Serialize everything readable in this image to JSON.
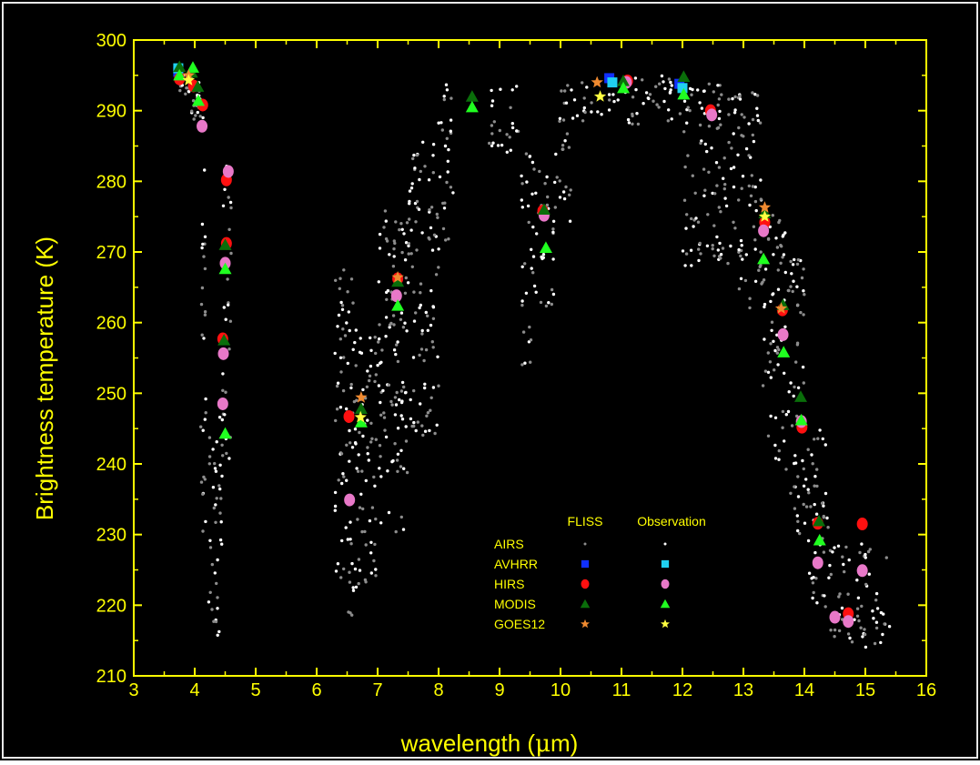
{
  "colors": {
    "background": "#000000",
    "border": "#e8e8e8",
    "axis": "#ffff00",
    "airs_fliss": "#8c8c8c",
    "airs_obs": "#ffffff",
    "avhrr_fliss": "#1030ff",
    "avhrr_obs": "#20d0f0",
    "hirs_fliss": "#ff1010",
    "hirs_obs": "#e878c8",
    "modis_fliss": "#0a6e0a",
    "modis_obs": "#20ff20",
    "goes_fliss": "#f08a30",
    "goes_obs": "#ffff40"
  },
  "chart_data": {
    "type": "scatter",
    "xlabel_main": "wavelength (",
    "xlabel_mu": "μ",
    "xlabel_end": "m)",
    "ylabel": "Brightness temperature (K)",
    "xlim": [
      3,
      16
    ],
    "ylim": [
      210,
      300
    ],
    "x_ticks": [
      "3",
      "4",
      "5",
      "6",
      "7",
      "8",
      "9",
      "10",
      "11",
      "12",
      "13",
      "14",
      "15",
      "16"
    ],
    "y_ticks": [
      "210",
      "220",
      "230",
      "240",
      "250",
      "260",
      "270",
      "280",
      "290",
      "300"
    ],
    "legend": {
      "placement": "bottom-center",
      "header_fliss": "FLISS",
      "header_obs": "Observation",
      "rows": [
        {
          "label": "AIRS",
          "fliss_marker": "dot",
          "fliss_color": "#8c8c8c",
          "obs_marker": "dot",
          "obs_color": "#ffffff"
        },
        {
          "label": "AVHRR",
          "fliss_marker": "square",
          "fliss_color": "#1030ff",
          "obs_marker": "square",
          "obs_color": "#20d0f0"
        },
        {
          "label": "HIRS",
          "fliss_marker": "circle",
          "fliss_color": "#ff1010",
          "obs_marker": "circle",
          "obs_color": "#e878c8"
        },
        {
          "label": "MODIS",
          "fliss_marker": "triangle",
          "fliss_color": "#0a6e0a",
          "obs_marker": "triangle",
          "obs_color": "#20ff20"
        },
        {
          "label": "GOES12",
          "fliss_marker": "star",
          "fliss_color": "#f08a30",
          "obs_marker": "star",
          "obs_color": "#ffff40"
        }
      ]
    },
    "airs_envelope": [
      {
        "x0": 3.7,
        "x1": 3.95,
        "lo": 292,
        "hi": 296
      },
      {
        "x0": 3.95,
        "x1": 4.1,
        "lo": 288,
        "hi": 294
      },
      {
        "x0": 4.1,
        "x1": 4.2,
        "lo": 230,
        "hi": 290
      },
      {
        "x0": 4.2,
        "x1": 4.35,
        "lo": 217,
        "hi": 245
      },
      {
        "x0": 4.35,
        "x1": 4.45,
        "lo": 214,
        "hi": 250
      },
      {
        "x0": 4.45,
        "x1": 4.6,
        "lo": 240,
        "hi": 286
      },
      {
        "x0": 6.3,
        "x1": 6.6,
        "lo": 218,
        "hi": 268
      },
      {
        "x0": 6.6,
        "x1": 7.0,
        "lo": 222,
        "hi": 262
      },
      {
        "x0": 7.0,
        "x1": 7.5,
        "lo": 230,
        "hi": 276
      },
      {
        "x0": 7.5,
        "x1": 8.0,
        "lo": 244,
        "hi": 286
      },
      {
        "x0": 8.0,
        "x1": 8.25,
        "lo": 270,
        "hi": 294
      },
      {
        "x0": 8.8,
        "x1": 9.35,
        "lo": 284,
        "hi": 294
      },
      {
        "x0": 9.35,
        "x1": 9.55,
        "lo": 254,
        "hi": 285
      },
      {
        "x0": 9.55,
        "x1": 9.9,
        "lo": 262,
        "hi": 282
      },
      {
        "x0": 9.9,
        "x1": 10.2,
        "lo": 274,
        "hi": 294
      },
      {
        "x0": 10.2,
        "x1": 12.0,
        "lo": 288,
        "hi": 295
      },
      {
        "x0": 12.0,
        "x1": 12.8,
        "lo": 268,
        "hi": 294
      },
      {
        "x0": 12.8,
        "x1": 13.3,
        "lo": 262,
        "hi": 293
      },
      {
        "x0": 13.3,
        "x1": 13.7,
        "lo": 240,
        "hi": 276
      },
      {
        "x0": 13.7,
        "x1": 14.0,
        "lo": 230,
        "hi": 270
      },
      {
        "x0": 14.0,
        "x1": 14.4,
        "lo": 219,
        "hi": 245
      },
      {
        "x0": 14.4,
        "x1": 15.4,
        "lo": 214,
        "hi": 229
      }
    ],
    "series": [
      {
        "name": "AVHRR FLISS",
        "marker": "square",
        "color": "#1030ff",
        "points": [
          [
            3.73,
            295.5
          ],
          [
            10.8,
            294.6
          ],
          [
            11.95,
            293.8
          ]
        ]
      },
      {
        "name": "AVHRR Observation",
        "marker": "square",
        "color": "#20d0f0",
        "points": [
          [
            3.73,
            296.0
          ],
          [
            10.85,
            294.0
          ],
          [
            12.0,
            293.2
          ]
        ]
      },
      {
        "name": "HIRS FLISS",
        "marker": "circle",
        "color": "#ff1010",
        "points": [
          [
            3.75,
            294.5
          ],
          [
            3.98,
            293.5
          ],
          [
            4.13,
            290.8
          ],
          [
            4.52,
            280.2
          ],
          [
            4.52,
            271.2
          ],
          [
            4.46,
            257.7
          ],
          [
            6.53,
            246.7
          ],
          [
            7.33,
            266.2
          ],
          [
            9.71,
            275.8
          ],
          [
            11.1,
            294.2
          ],
          [
            12.46,
            290.0
          ],
          [
            13.35,
            274.2
          ],
          [
            13.64,
            261.8
          ],
          [
            13.96,
            245.2
          ],
          [
            14.22,
            231.6
          ],
          [
            14.72,
            218.8
          ],
          [
            14.95,
            231.5
          ]
        ]
      },
      {
        "name": "HIRS Observation",
        "marker": "circle",
        "color": "#e878c8",
        "points": [
          [
            4.12,
            287.8
          ],
          [
            4.55,
            281.4
          ],
          [
            4.5,
            268.4
          ],
          [
            4.47,
            255.6
          ],
          [
            4.46,
            248.5
          ],
          [
            6.54,
            234.9
          ],
          [
            7.31,
            263.8
          ],
          [
            9.73,
            275.2
          ],
          [
            11.08,
            294.0
          ],
          [
            12.48,
            289.4
          ],
          [
            13.33,
            273.0
          ],
          [
            13.65,
            258.3
          ],
          [
            13.95,
            246.0
          ],
          [
            14.22,
            226.0
          ],
          [
            14.5,
            218.3
          ],
          [
            14.72,
            217.7
          ],
          [
            14.95,
            224.9
          ]
        ]
      },
      {
        "name": "MODIS FLISS",
        "marker": "triangle",
        "color": "#0a6e0a",
        "points": [
          [
            3.75,
            296.2
          ],
          [
            3.95,
            295.4
          ],
          [
            4.05,
            293.4
          ],
          [
            4.5,
            271.0
          ],
          [
            4.48,
            257.5
          ],
          [
            6.73,
            247.8
          ],
          [
            7.33,
            265.8
          ],
          [
            8.55,
            292.0
          ],
          [
            9.73,
            276.0
          ],
          [
            11.03,
            294.2
          ],
          [
            12.02,
            294.8
          ],
          [
            13.35,
            275.5
          ],
          [
            13.65,
            262.5
          ],
          [
            13.94,
            249.5
          ],
          [
            14.24,
            231.9
          ]
        ]
      },
      {
        "name": "MODIS Observation",
        "marker": "triangle",
        "color": "#20ff20",
        "points": [
          [
            3.75,
            295.0
          ],
          [
            3.97,
            296.1
          ],
          [
            4.06,
            291.4
          ],
          [
            4.5,
            267.6
          ],
          [
            4.5,
            244.3
          ],
          [
            6.73,
            245.9
          ],
          [
            7.33,
            262.4
          ],
          [
            8.55,
            290.5
          ],
          [
            9.76,
            270.6
          ],
          [
            11.03,
            293.2
          ],
          [
            12.02,
            292.3
          ],
          [
            13.33,
            269.0
          ],
          [
            13.66,
            255.8
          ],
          [
            13.95,
            246.2
          ],
          [
            14.25,
            229.2
          ]
        ]
      },
      {
        "name": "GOES12 FLISS",
        "marker": "star",
        "color": "#f08a30",
        "points": [
          [
            3.9,
            295.0
          ],
          [
            6.73,
            249.4
          ],
          [
            7.33,
            266.4
          ],
          [
            10.6,
            294.0
          ],
          [
            13.35,
            276.3
          ],
          [
            13.62,
            262.0
          ]
        ]
      },
      {
        "name": "GOES12 Observation",
        "marker": "star",
        "color": "#ffff40",
        "points": [
          [
            3.9,
            294.3
          ],
          [
            6.72,
            246.6
          ],
          [
            10.65,
            292.0
          ],
          [
            13.35,
            275.0
          ]
        ]
      }
    ]
  }
}
